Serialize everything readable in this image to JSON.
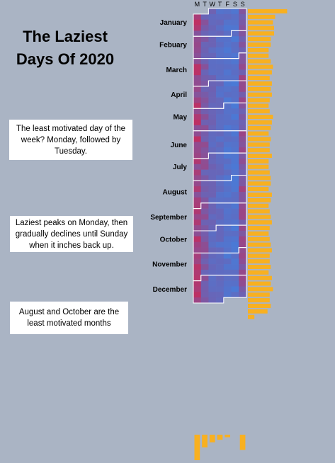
{
  "title": "The Laziest Days Of 2020",
  "notes": [
    "The least motivated day of the week? Monday, followed by Tuesday.",
    "Laziest peaks on Monday, then gradually declines until Sunday when it inches back up.",
    "August and October are the least motivated months"
  ],
  "colors": {
    "background": "#aab4c4",
    "low": "#4a7ad6",
    "mid": "#7060b0",
    "high": "#d8204a",
    "bar": "#f8b020",
    "border": "#ffffff"
  },
  "chart_data": {
    "type": "heatmap",
    "year": 2020,
    "first_weekday": "Wednesday",
    "days": [
      "M",
      "T",
      "W",
      "T",
      "F",
      "S",
      "S"
    ],
    "months": [
      "January",
      "Febuary",
      "March",
      "April",
      "May",
      "June",
      "July",
      "August",
      "September",
      "October",
      "November",
      "December"
    ],
    "weekday_base": [
      0.74,
      0.52,
      0.35,
      0.25,
      0.16,
      0.12,
      0.6
    ],
    "weekday_totals": [
      10,
      5,
      3,
      2,
      1,
      0,
      6
    ],
    "weekly_totals": [
      7.2,
      5,
      4.6,
      4.8,
      4.8,
      4.2,
      4.2,
      3.8,
      3.8,
      4.2,
      4.6,
      4.4,
      4,
      4.4,
      4.2,
      4.4,
      4,
      3.8,
      4,
      4.6,
      4.4,
      4.2,
      3.8,
      4.2,
      4,
      4,
      4.4,
      3.8,
      3.8,
      4,
      4.2,
      4.2,
      3.8,
      4.4,
      4.2,
      3.8,
      4,
      4.2,
      4.4,
      4,
      3.8,
      4,
      4.2,
      4.4,
      4,
      4,
      4.2,
      3.8,
      4.4,
      4.2,
      4.6,
      4,
      4,
      4.2,
      3.6,
      1.2
    ],
    "legend": "none",
    "grid": false
  }
}
